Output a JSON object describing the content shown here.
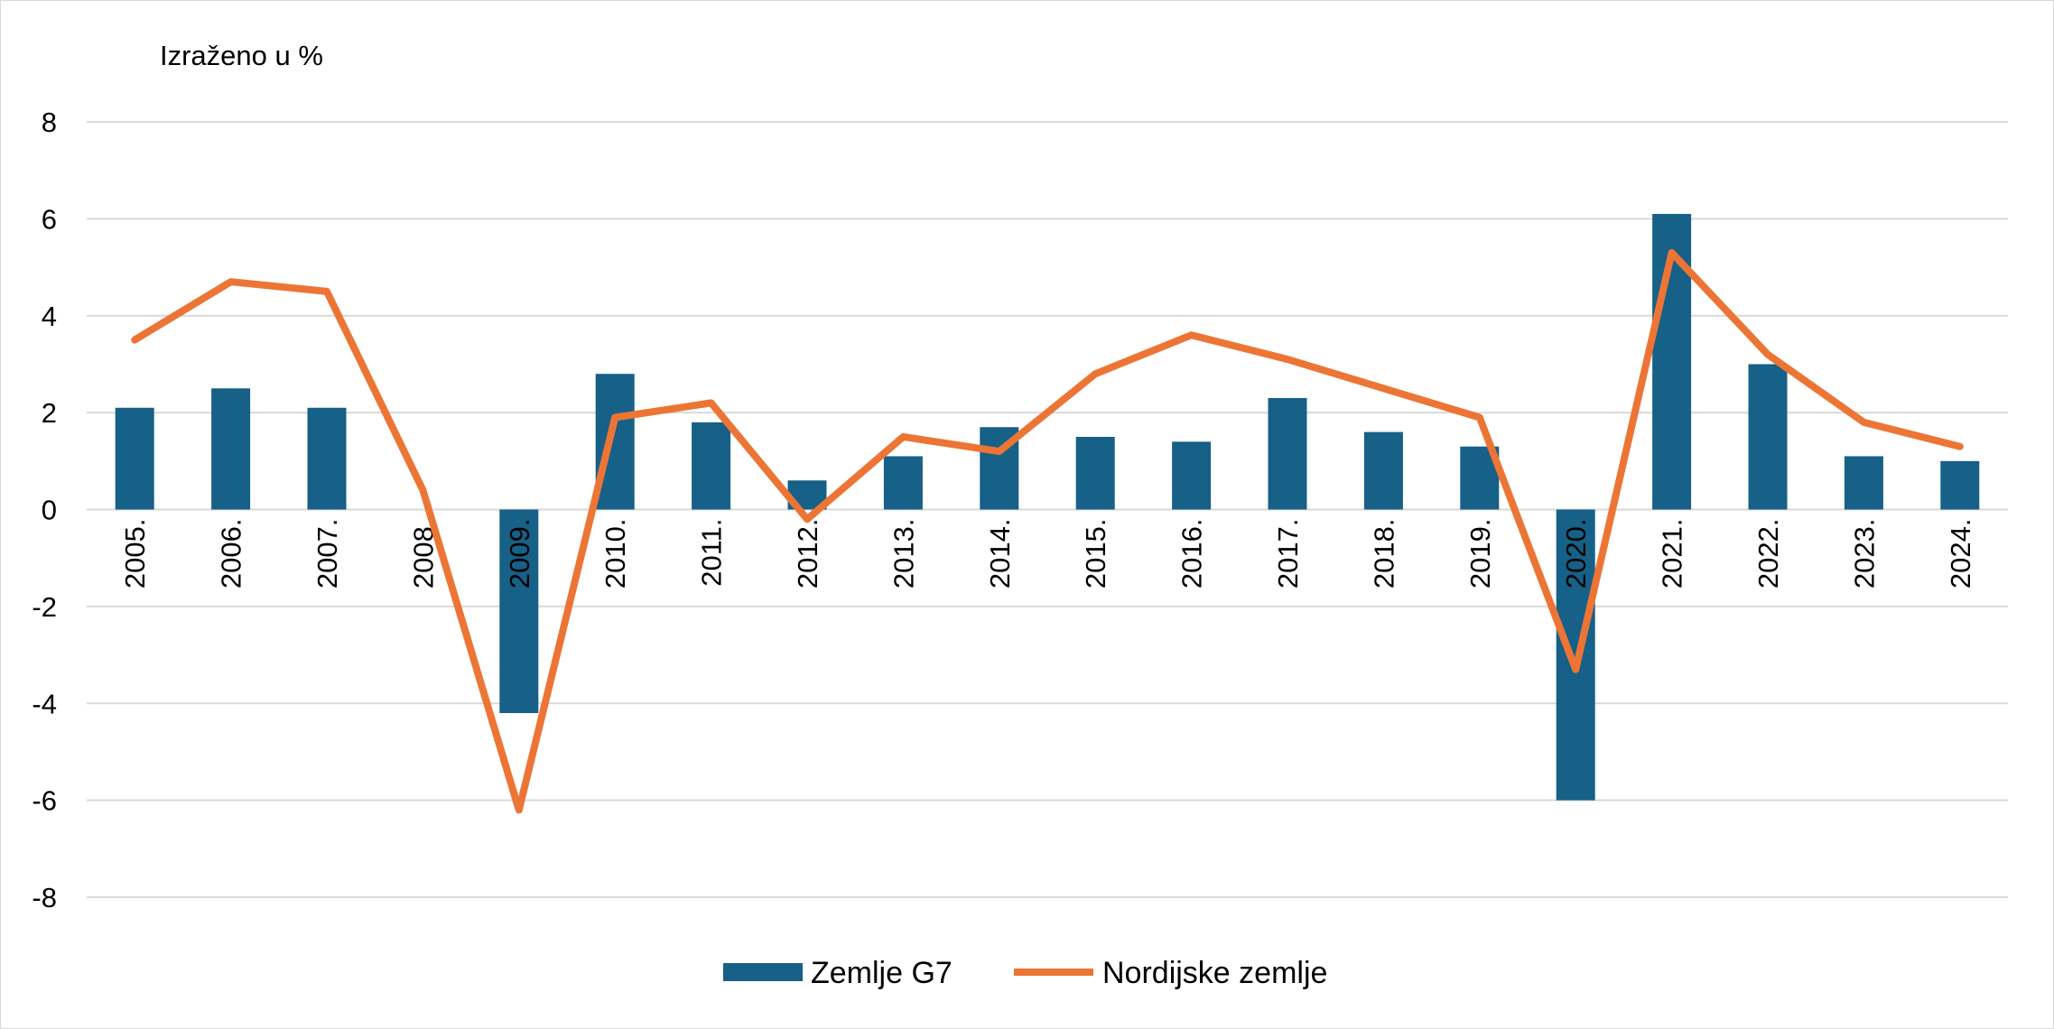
{
  "colors": {
    "bar": "#176087",
    "line": "#ec7535",
    "grid": "#d9d9d9",
    "text": "#000000",
    "background": "#ffffff"
  },
  "chart_data": {
    "type": "bar",
    "unit_label": "Izraženo u %",
    "categories": [
      "2005.",
      "2006.",
      "2007.",
      "2008.",
      "2009.",
      "2010.",
      "2011.",
      "2012.",
      "2013.",
      "2014.",
      "2015.",
      "2016.",
      "2017.",
      "2018.",
      "2019.",
      "2020.",
      "2021.",
      "2022.",
      "2023.",
      "2024."
    ],
    "series": [
      {
        "name": "Zemlje G7",
        "type": "bar",
        "values": [
          2.1,
          2.5,
          2.1,
          null,
          -4.2,
          2.8,
          1.8,
          0.6,
          1.1,
          1.7,
          1.5,
          1.4,
          2.3,
          1.6,
          1.3,
          -6.0,
          6.1,
          3.0,
          1.1,
          1.0
        ]
      },
      {
        "name": "Nordijske zemlje",
        "type": "line",
        "values": [
          3.5,
          4.7,
          4.5,
          0.4,
          -6.2,
          1.9,
          2.2,
          -0.2,
          1.5,
          1.2,
          2.8,
          3.6,
          3.1,
          2.5,
          1.9,
          -3.3,
          5.3,
          3.2,
          1.8,
          1.3
        ]
      }
    ],
    "ylim": [
      -8,
      8
    ],
    "yticks": [
      "8",
      "6",
      "4",
      "2",
      "0",
      "-2",
      "-4",
      "-6",
      "-8"
    ],
    "grid": true,
    "legend_position": "bottom-center",
    "xlabel": "",
    "ylabel": ""
  }
}
